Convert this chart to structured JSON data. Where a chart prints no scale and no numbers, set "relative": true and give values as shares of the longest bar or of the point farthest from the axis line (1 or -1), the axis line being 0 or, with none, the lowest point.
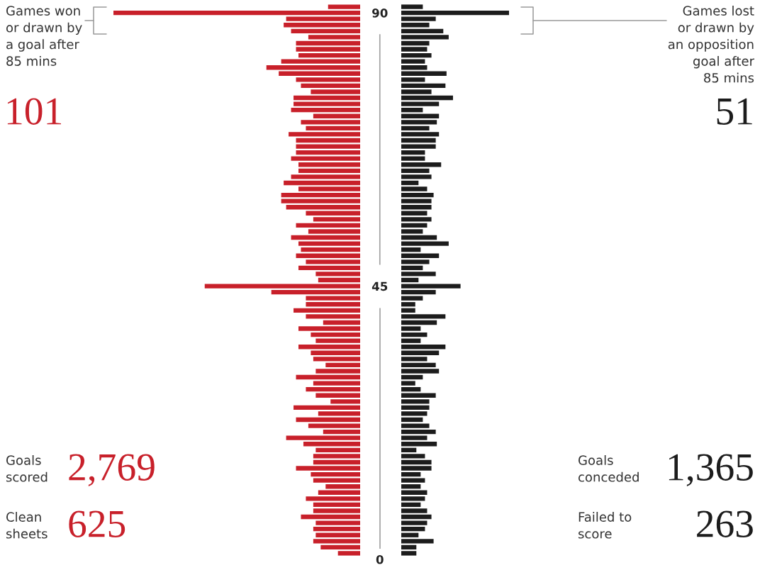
{
  "chart_data": [
    {
      "type": "bar",
      "orientation": "horizontal",
      "relative": true,
      "tick_labels": "y",
      "x": [
        91,
        90,
        89,
        88,
        87,
        86,
        85,
        84,
        83,
        82,
        81,
        80,
        79,
        78,
        77,
        76,
        75,
        74,
        73,
        72,
        71,
        70,
        69,
        68,
        67,
        66,
        65,
        64,
        63,
        62,
        61,
        60,
        59,
        58,
        57,
        56,
        55,
        54,
        53,
        52,
        51,
        50,
        49,
        48,
        47,
        46,
        45,
        44,
        43,
        42,
        41,
        40,
        39,
        38,
        37,
        36,
        35,
        34,
        33,
        32,
        31,
        30,
        29,
        28,
        27,
        26,
        25,
        24,
        23,
        22,
        21,
        20,
        19,
        18,
        17,
        16,
        15,
        14,
        13,
        12,
        11,
        10,
        9,
        8,
        7,
        6,
        5,
        4,
        3,
        2,
        1
      ],
      "ylim": [
        0,
        92
      ],
      "yticks": [
        0,
        45,
        90
      ],
      "series": [
        {
          "color": "#c8202a",
          "values": [
            0.13,
            1.0,
            0.3,
            0.31,
            0.28,
            0.21,
            0.26,
            0.26,
            0.25,
            0.32,
            0.38,
            0.33,
            0.26,
            0.24,
            0.2,
            0.27,
            0.27,
            0.28,
            0.19,
            0.24,
            0.22,
            0.29,
            0.26,
            0.26,
            0.26,
            0.28,
            0.25,
            0.25,
            0.28,
            0.31,
            0.25,
            0.32,
            0.32,
            0.3,
            0.22,
            0.19,
            0.26,
            0.21,
            0.28,
            0.25,
            0.24,
            0.26,
            0.22,
            0.25,
            0.18,
            0.17,
            0.63,
            0.36,
            0.22,
            0.22,
            0.27,
            0.22,
            0.15,
            0.25,
            0.2,
            0.18,
            0.25,
            0.2,
            0.19,
            0.14,
            0.18,
            0.26,
            0.19,
            0.22,
            0.18,
            0.12,
            0.27,
            0.17,
            0.26,
            0.21,
            0.15,
            0.3,
            0.23,
            0.18,
            0.19,
            0.19,
            0.26,
            0.2,
            0.19,
            0.14,
            0.17,
            0.22,
            0.19,
            0.19,
            0.24,
            0.18,
            0.19,
            0.18,
            0.19,
            0.16,
            0.09
          ]
        }
      ],
      "annotations": [
        "Games won\nor drawn by\na goal after\n85 mins",
        "101",
        "Goals\nscored",
        "2,769",
        "Clean\nsheets",
        "625"
      ]
    },
    {
      "type": "bar",
      "orientation": "horizontal",
      "relative": true,
      "tick_labels": false,
      "x": [
        91,
        90,
        89,
        88,
        87,
        86,
        85,
        84,
        83,
        82,
        81,
        80,
        79,
        78,
        77,
        76,
        75,
        74,
        73,
        72,
        71,
        70,
        69,
        68,
        67,
        66,
        65,
        64,
        63,
        62,
        61,
        60,
        59,
        58,
        57,
        56,
        55,
        54,
        53,
        52,
        51,
        50,
        49,
        48,
        47,
        46,
        45,
        44,
        43,
        42,
        41,
        40,
        39,
        38,
        37,
        36,
        35,
        34,
        33,
        32,
        31,
        30,
        29,
        28,
        27,
        26,
        25,
        24,
        23,
        22,
        21,
        20,
        19,
        18,
        17,
        16,
        15,
        14,
        13,
        12,
        11,
        10,
        9,
        8,
        7,
        6,
        5,
        4,
        3,
        2,
        1
      ],
      "ylim": [
        0,
        92
      ],
      "series": [
        {
          "color": "#1c1c1c",
          "values": [
            0.2,
            1.0,
            0.32,
            0.26,
            0.39,
            0.44,
            0.26,
            0.24,
            0.28,
            0.22,
            0.24,
            0.42,
            0.22,
            0.41,
            0.28,
            0.48,
            0.35,
            0.2,
            0.35,
            0.33,
            0.26,
            0.35,
            0.32,
            0.32,
            0.22,
            0.22,
            0.37,
            0.26,
            0.28,
            0.16,
            0.24,
            0.3,
            0.28,
            0.28,
            0.24,
            0.28,
            0.24,
            0.2,
            0.33,
            0.44,
            0.18,
            0.35,
            0.26,
            0.2,
            0.32,
            0.16,
            0.55,
            0.32,
            0.2,
            0.13,
            0.13,
            0.41,
            0.33,
            0.18,
            0.24,
            0.18,
            0.41,
            0.35,
            0.24,
            0.32,
            0.35,
            0.2,
            0.13,
            0.18,
            0.32,
            0.26,
            0.26,
            0.24,
            0.2,
            0.26,
            0.32,
            0.24,
            0.33,
            0.14,
            0.22,
            0.28,
            0.28,
            0.18,
            0.22,
            0.18,
            0.24,
            0.22,
            0.18,
            0.24,
            0.28,
            0.24,
            0.22,
            0.16,
            0.3,
            0.14,
            0.14
          ]
        }
      ],
      "annotations": [
        "Games lost\nor drawn by\nan opposition\ngoal after\n85 mins",
        "51",
        "Goals\nconceded",
        "1,365",
        "Failed to\nscore",
        "263"
      ]
    }
  ]
}
